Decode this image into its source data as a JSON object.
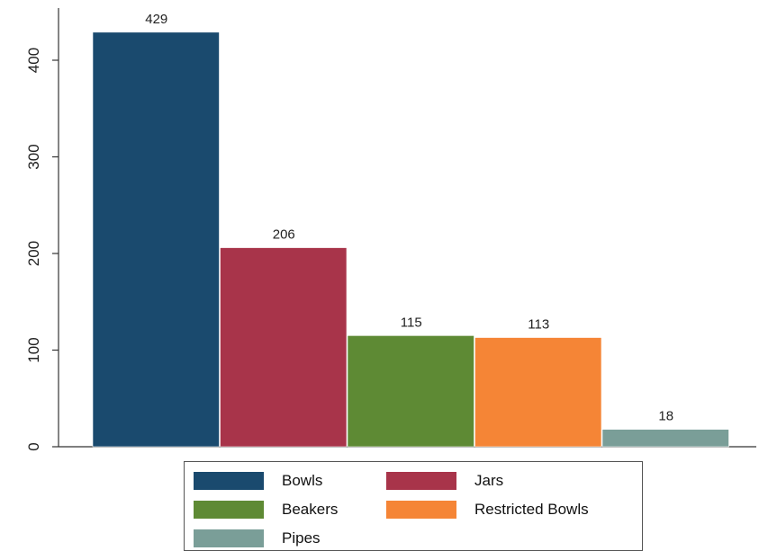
{
  "chart_data": {
    "type": "bar",
    "categories": [
      "Bowls",
      "Jars",
      "Beakers",
      "Restricted Bowls",
      "Pipes"
    ],
    "values": [
      429,
      206,
      115,
      113,
      18
    ],
    "data_labels": [
      "429",
      "206",
      "115",
      "113",
      "18"
    ],
    "colors": [
      "#1a4a6e",
      "#a8344a",
      "#5e8a34",
      "#f58536",
      "#7a9e98"
    ],
    "ylim": [
      0,
      440
    ],
    "yticks": [
      0,
      100,
      200,
      300,
      400
    ],
    "ytick_labels": [
      "0",
      "100",
      "200",
      "300",
      "400"
    ],
    "title": "",
    "xlabel": "",
    "ylabel": "",
    "grid": false,
    "legend_position": "bottom"
  },
  "legend": {
    "items": [
      {
        "label": "Bowls",
        "color": "#1a4a6e"
      },
      {
        "label": "Jars",
        "color": "#a8344a"
      },
      {
        "label": "Beakers",
        "color": "#5e8a34"
      },
      {
        "label": "Restricted Bowls",
        "color": "#f58536"
      },
      {
        "label": "Pipes",
        "color": "#7a9e98"
      }
    ]
  }
}
